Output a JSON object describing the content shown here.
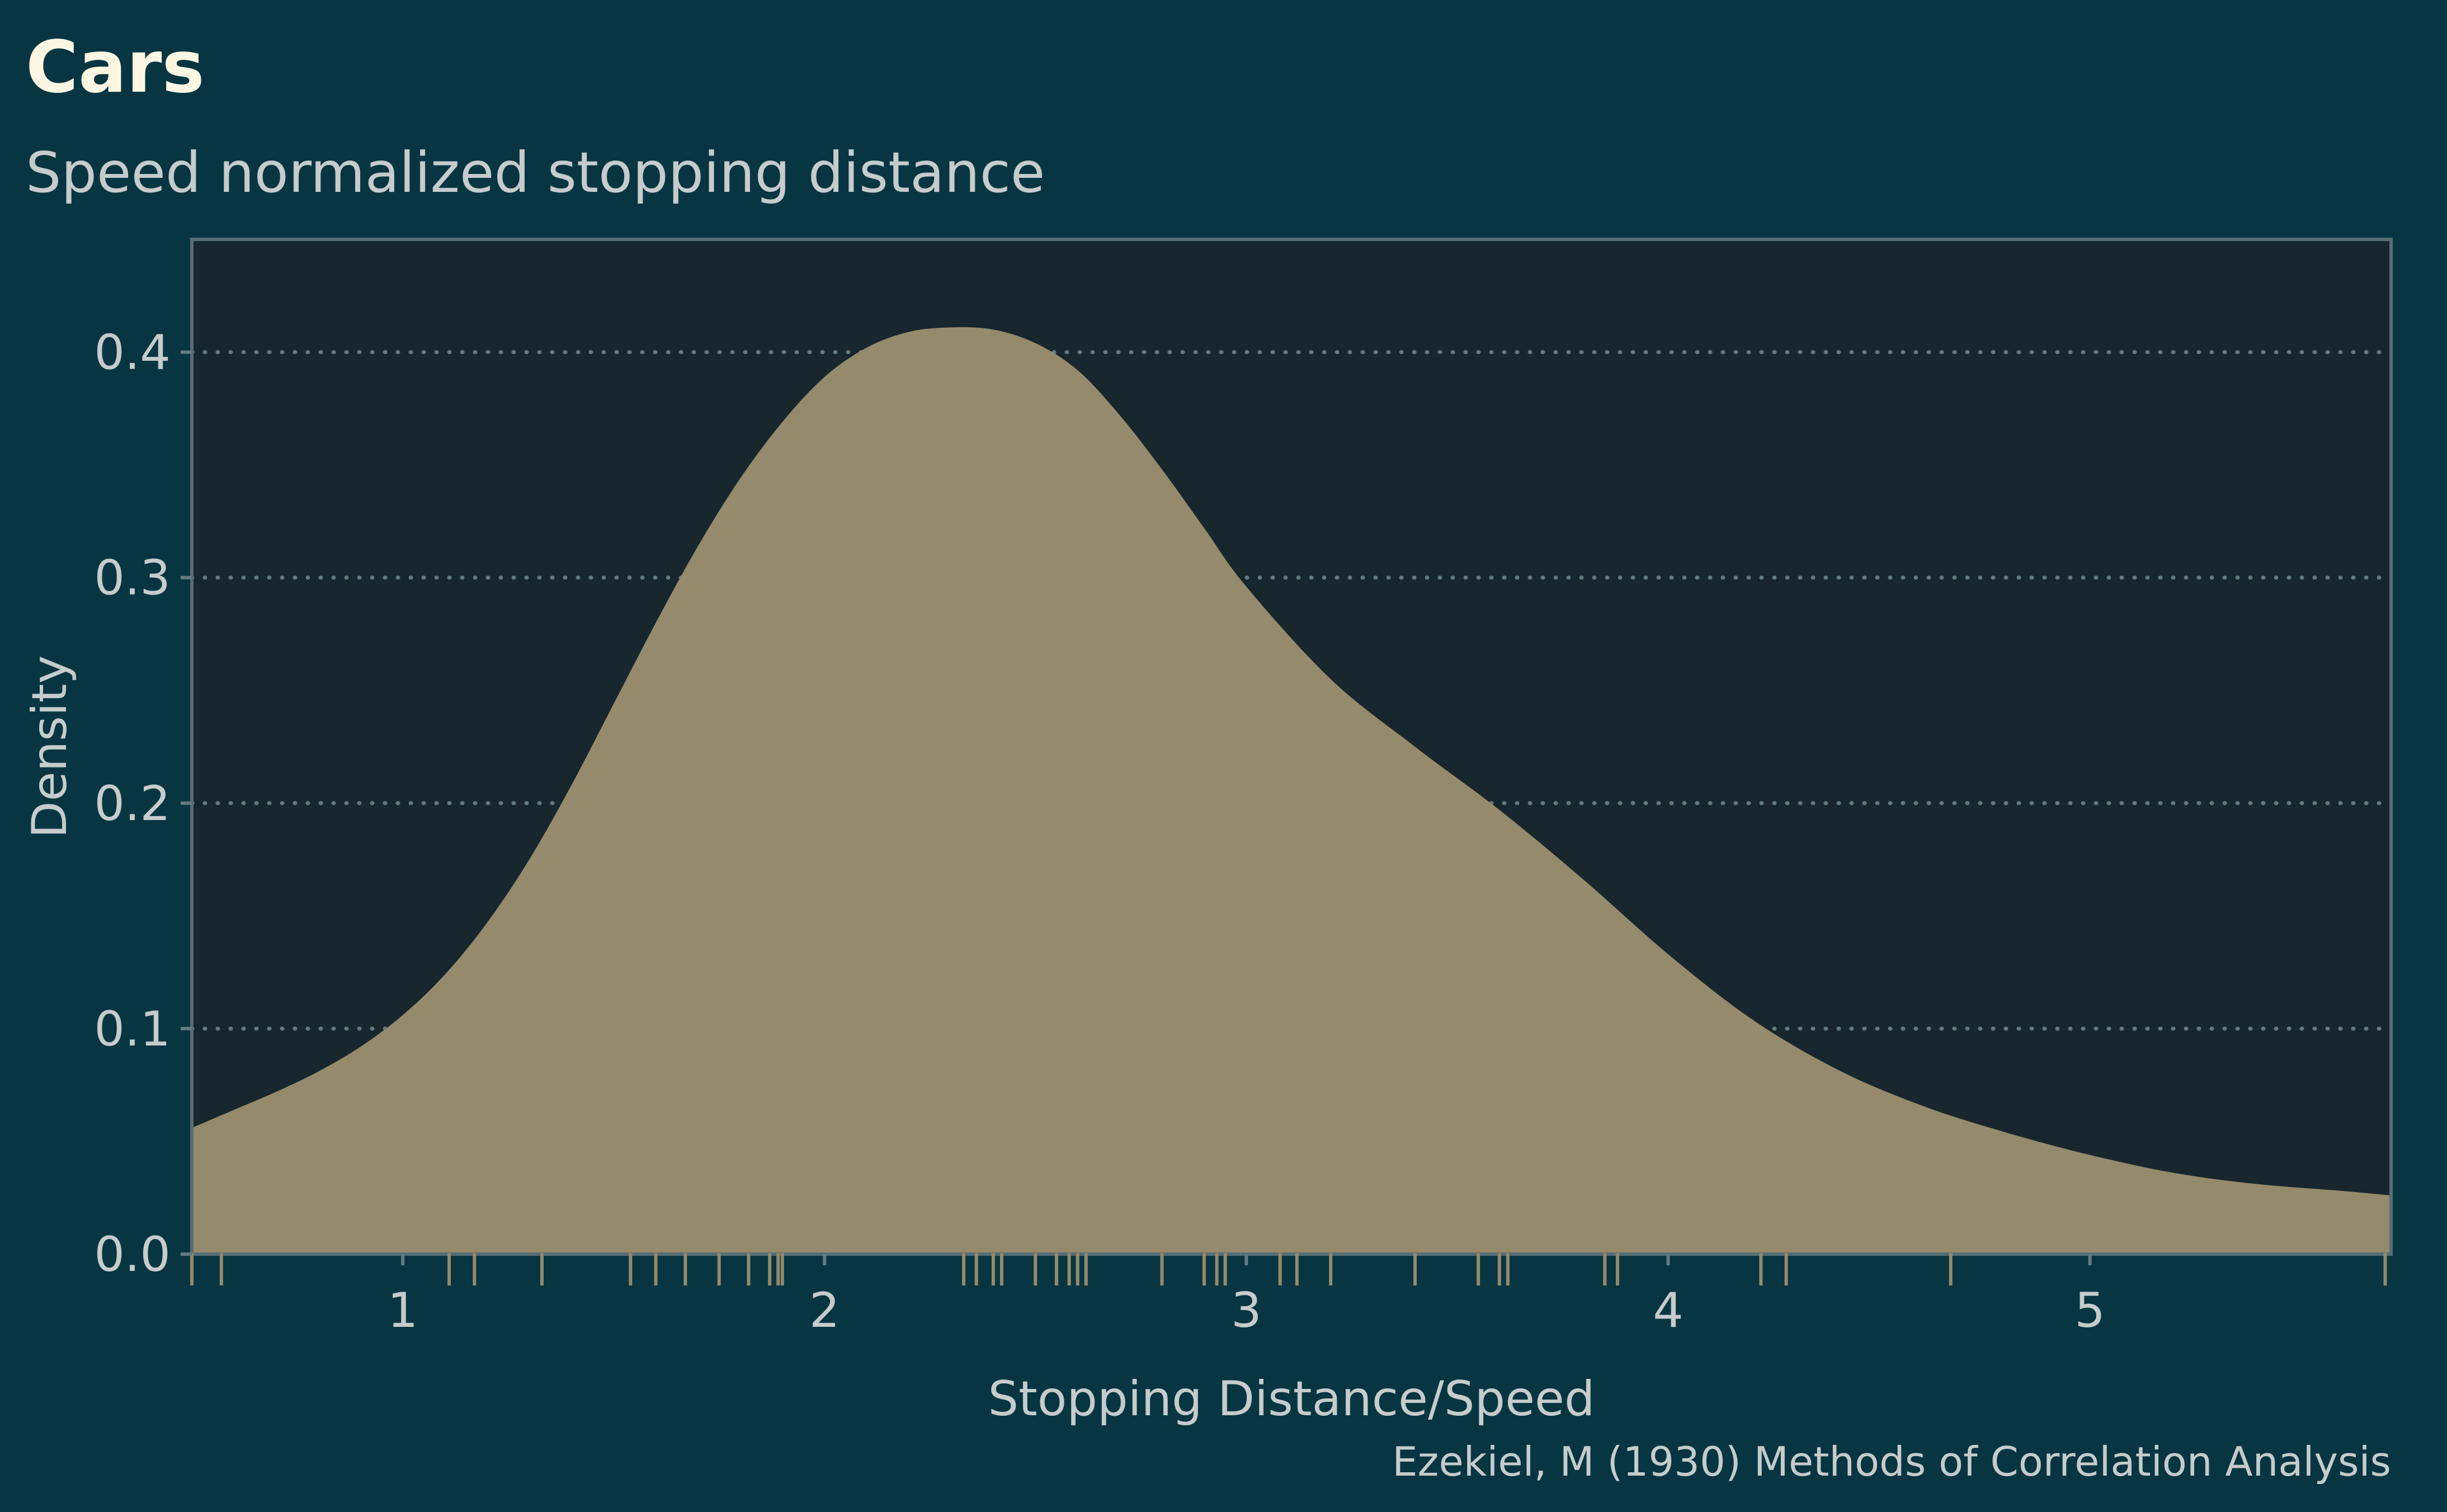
{
  "chart_data": {
    "type": "area",
    "title": "Cars",
    "subtitle": "Speed normalized stopping distance",
    "xlabel": "Stopping Distance/Speed",
    "ylabel": "Density",
    "caption": "Ezekiel, M (1930) Methods of Correlation Analysis",
    "xlim": [
      0.5,
      5.714
    ],
    "ylim": [
      0,
      0.45
    ],
    "x_ticks": [
      "1",
      "2",
      "3",
      "4",
      "5"
    ],
    "x_tick_values": [
      1,
      2,
      3,
      4,
      5
    ],
    "y_ticks": [
      "0.0",
      "0.1",
      "0.2",
      "0.3",
      "0.4"
    ],
    "y_tick_values": [
      0,
      0.1,
      0.2,
      0.3,
      0.4
    ],
    "grid": "horizontal dotted",
    "density": {
      "x": [
        0.5,
        0.6,
        0.7,
        0.8,
        0.9,
        1.0,
        1.1,
        1.2,
        1.3,
        1.4,
        1.5,
        1.6,
        1.7,
        1.8,
        1.9,
        2.0,
        2.1,
        2.2,
        2.3,
        2.4,
        2.5,
        2.6,
        2.7,
        2.8,
        2.9,
        3.0,
        3.2,
        3.4,
        3.6,
        3.8,
        4.0,
        4.2,
        4.4,
        4.6,
        4.8,
        5.0,
        5.2,
        5.4,
        5.6,
        5.714
      ],
      "y": [
        0.056,
        0.064,
        0.072,
        0.081,
        0.092,
        0.106,
        0.124,
        0.147,
        0.175,
        0.208,
        0.244,
        0.28,
        0.314,
        0.344,
        0.369,
        0.389,
        0.402,
        0.409,
        0.411,
        0.41,
        0.404,
        0.392,
        0.372,
        0.348,
        0.322,
        0.296,
        0.255,
        0.225,
        0.197,
        0.166,
        0.133,
        0.104,
        0.082,
        0.066,
        0.054,
        0.044,
        0.036,
        0.031,
        0.028,
        0.026
      ]
    },
    "rug": [
      0.5,
      0.57,
      1.11,
      1.17,
      1.33,
      1.54,
      1.6,
      1.67,
      1.75,
      1.82,
      1.87,
      1.89,
      1.9,
      2.33,
      2.36,
      2.4,
      2.42,
      2.5,
      2.55,
      2.58,
      2.6,
      2.62,
      2.8,
      2.9,
      2.93,
      2.95,
      3.08,
      3.12,
      3.2,
      3.4,
      3.55,
      3.6,
      3.62,
      3.85,
      3.88,
      4.22,
      4.28,
      4.67,
      5.7
    ],
    "colors": {
      "background": "#073642",
      "panel": "#18272d",
      "fill": "#958a6b",
      "rug": "#958a6b",
      "grid": "#657b83",
      "text": "#c6cbcb",
      "title": "#fdf6e3"
    }
  }
}
